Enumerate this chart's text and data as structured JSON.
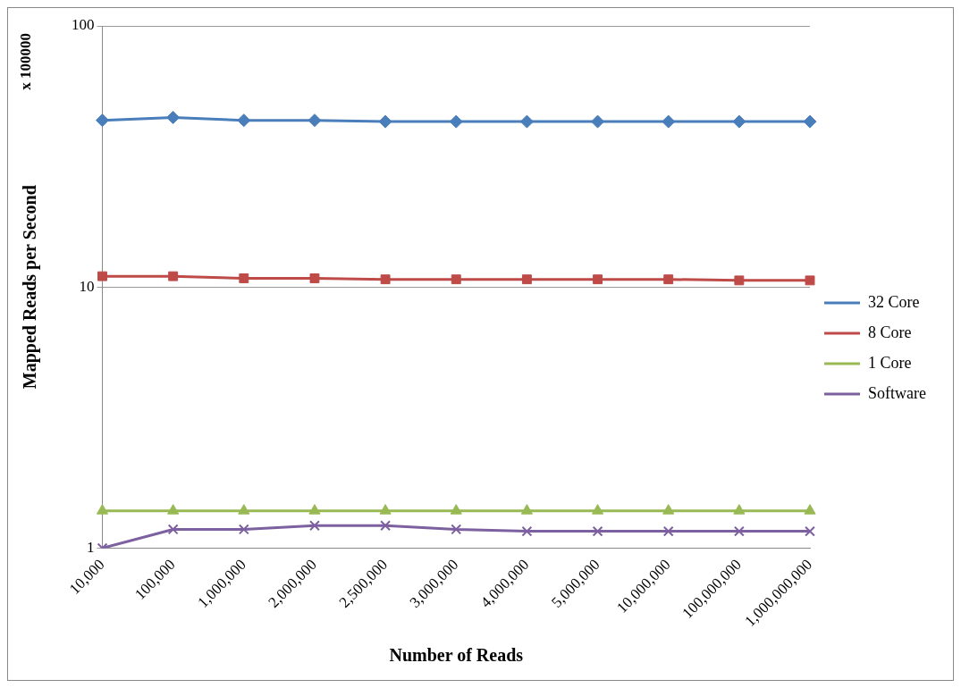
{
  "chart_data": {
    "type": "line",
    "xlabel": "Number of Reads",
    "ylabel": "Mapped Reads per Second",
    "annotations": [
      "x 100000"
    ],
    "categories": [
      "10,000",
      "100,000",
      "1,000,000",
      "2,000,000",
      "2,500,000",
      "3,000,000",
      "4,000,000",
      "5,000,000",
      "10,000,000",
      "100,000,000",
      "1,000,000,000"
    ],
    "series": [
      {
        "name": "32 Core",
        "color": "#4a7ebb",
        "marker": "diamond",
        "values": [
          43.5,
          44.6,
          43.5,
          43.5,
          43,
          43,
          43,
          43,
          43,
          43,
          43
        ]
      },
      {
        "name": "8 Core",
        "color": "#be4b48",
        "marker": "square",
        "values": [
          11,
          11,
          10.8,
          10.8,
          10.7,
          10.7,
          10.7,
          10.7,
          10.7,
          10.6,
          10.6
        ]
      },
      {
        "name": "1 Core",
        "color": "#98b954",
        "marker": "triangle",
        "values": [
          1.39,
          1.39,
          1.39,
          1.39,
          1.39,
          1.39,
          1.39,
          1.39,
          1.39,
          1.39,
          1.39
        ]
      },
      {
        "name": "Software",
        "color": "#7d60a0",
        "marker": "cross",
        "values": [
          1,
          1.18,
          1.18,
          1.22,
          1.22,
          1.18,
          1.16,
          1.16,
          1.16,
          1.16,
          1.16
        ]
      }
    ],
    "log": "y",
    "ylim": [
      1,
      100
    ],
    "yticks": [
      1,
      10,
      100
    ],
    "grid": "y",
    "legend": "right"
  }
}
